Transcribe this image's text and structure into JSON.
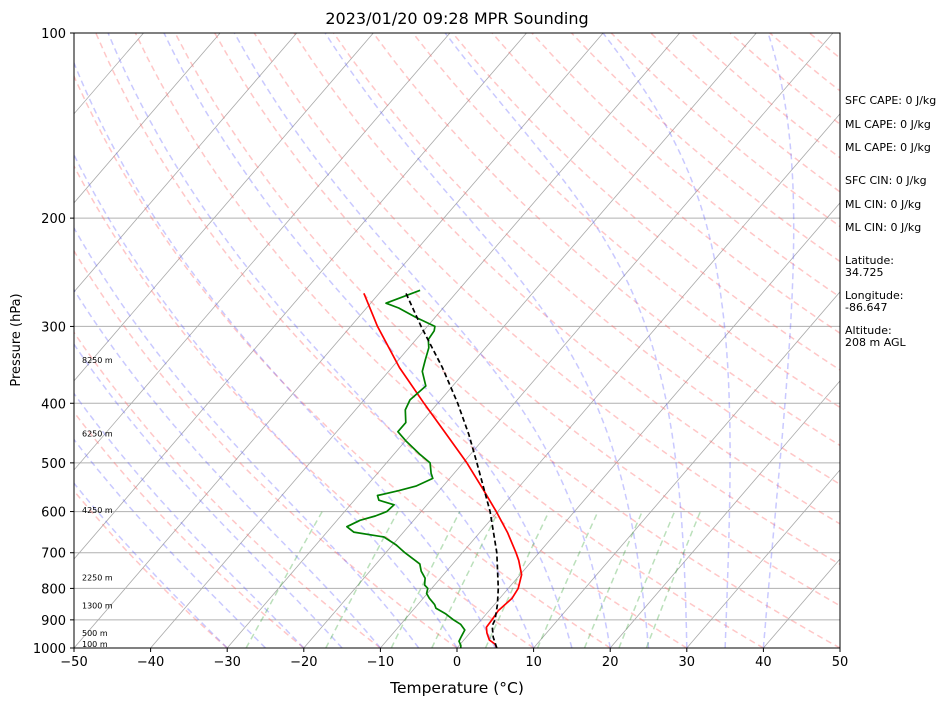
{
  "chart_data": {
    "type": "skew-t",
    "title": "2023/01/20 09:28 MPR Sounding",
    "xlabel": "Temperature (°C)",
    "ylabel": "Pressure (hPa)",
    "xlim": [
      -50,
      50
    ],
    "ylim": [
      1000,
      100
    ],
    "y_scale": "log",
    "grid": true,
    "x_ticks": [
      "−50",
      "−40",
      "−30",
      "−20",
      "−10",
      "0",
      "10",
      "20",
      "30",
      "40",
      "50"
    ],
    "y_ticks": [
      "100",
      "200",
      "300",
      "400",
      "500",
      "600",
      "700",
      "800",
      "900",
      "1000"
    ],
    "height_labels": [
      {
        "pressure": 1000,
        "label": "100 m"
      },
      {
        "pressure": 960,
        "label": "500 m"
      },
      {
        "pressure": 865,
        "label": "1300 m"
      },
      {
        "pressure": 780,
        "label": "2250 m"
      },
      {
        "pressure": 605,
        "label": "4250 m"
      },
      {
        "pressure": 455,
        "label": "6250 m"
      },
      {
        "pressure": 345,
        "label": "8250 m"
      }
    ],
    "series": [
      {
        "color": "#ff0000",
        "points": [
          [
            1000,
            5.2
          ],
          [
            985,
            4.5
          ],
          [
            970,
            3.3
          ],
          [
            945,
            2.2
          ],
          [
            925,
            1.5
          ],
          [
            900,
            1.4
          ],
          [
            870,
            1.2
          ],
          [
            840,
            1.5
          ],
          [
            830,
            1.6
          ],
          [
            800,
            1.3
          ],
          [
            760,
            0.2
          ],
          [
            720,
            -1.8
          ],
          [
            700,
            -3.0
          ],
          [
            650,
            -6.3
          ],
          [
            600,
            -10.2
          ],
          [
            550,
            -14.6
          ],
          [
            500,
            -19.5
          ],
          [
            450,
            -25.3
          ],
          [
            400,
            -31.8
          ],
          [
            350,
            -39.0
          ],
          [
            300,
            -46.5
          ],
          [
            265,
            -52.0
          ]
        ]
      },
      {
        "color": "#008000",
        "points": [
          [
            1000,
            0.5
          ],
          [
            990,
            0.2
          ],
          [
            975,
            -0.5
          ],
          [
            960,
            -0.7
          ],
          [
            935,
            -1.0
          ],
          [
            915,
            -2.2
          ],
          [
            900,
            -3.6
          ],
          [
            880,
            -5.3
          ],
          [
            862,
            -7.2
          ],
          [
            850,
            -7.8
          ],
          [
            830,
            -9.2
          ],
          [
            815,
            -10.1
          ],
          [
            800,
            -10.5
          ],
          [
            790,
            -11.3
          ],
          [
            770,
            -12.0
          ],
          [
            750,
            -13.3
          ],
          [
            730,
            -14.3
          ],
          [
            700,
            -17.5
          ],
          [
            680,
            -19.5
          ],
          [
            660,
            -22.0
          ],
          [
            648,
            -26.5
          ],
          [
            635,
            -28.0
          ],
          [
            620,
            -27.0
          ],
          [
            610,
            -25.5
          ],
          [
            600,
            -24.5
          ],
          [
            585,
            -24.3
          ],
          [
            575,
            -26.8
          ],
          [
            565,
            -27.5
          ],
          [
            555,
            -25.3
          ],
          [
            545,
            -23.5
          ],
          [
            530,
            -22.2
          ],
          [
            520,
            -23.0
          ],
          [
            500,
            -24.3
          ],
          [
            485,
            -26.5
          ],
          [
            460,
            -30.0
          ],
          [
            445,
            -32.0
          ],
          [
            430,
            -32.0
          ],
          [
            410,
            -33.5
          ],
          [
            395,
            -34.0
          ],
          [
            375,
            -33.5
          ],
          [
            355,
            -35.6
          ],
          [
            340,
            -36.5
          ],
          [
            325,
            -37.4
          ],
          [
            315,
            -38.4
          ],
          [
            305,
            -38.6
          ],
          [
            300,
            -39.0
          ],
          [
            290,
            -42.5
          ],
          [
            280,
            -45.8
          ],
          [
            275,
            -48.0
          ],
          [
            262,
            -45.0
          ]
        ]
      },
      {
        "color": "#000000",
        "points": [
          [
            1000,
            5.2
          ],
          [
            960,
            3.5
          ],
          [
            920,
            2.1
          ],
          [
            900,
            1.8
          ],
          [
            850,
            0.4
          ],
          [
            800,
            -1.3
          ],
          [
            700,
            -5.5
          ],
          [
            600,
            -11.0
          ],
          [
            500,
            -18.2
          ],
          [
            450,
            -22.4
          ],
          [
            400,
            -27.4
          ],
          [
            350,
            -33.4
          ],
          [
            300,
            -40.8
          ],
          [
            265,
            -46.5
          ]
        ]
      }
    ]
  },
  "stats": [
    "SFC CAPE: 0 J/kg",
    "ML CAPE: 0 J/kg",
    "ML CAPE: 0 J/kg",
    "SFC CIN: 0 J/kg",
    "ML CIN: 0 J/kg",
    "ML CIN: 0 J/kg"
  ],
  "location": {
    "lat_label": "Latitude:",
    "lat_value": "34.725",
    "lon_label": "Longitude:",
    "lon_value": "-86.647",
    "alt_label": "Altitude:",
    "alt_value": "208 m AGL"
  }
}
